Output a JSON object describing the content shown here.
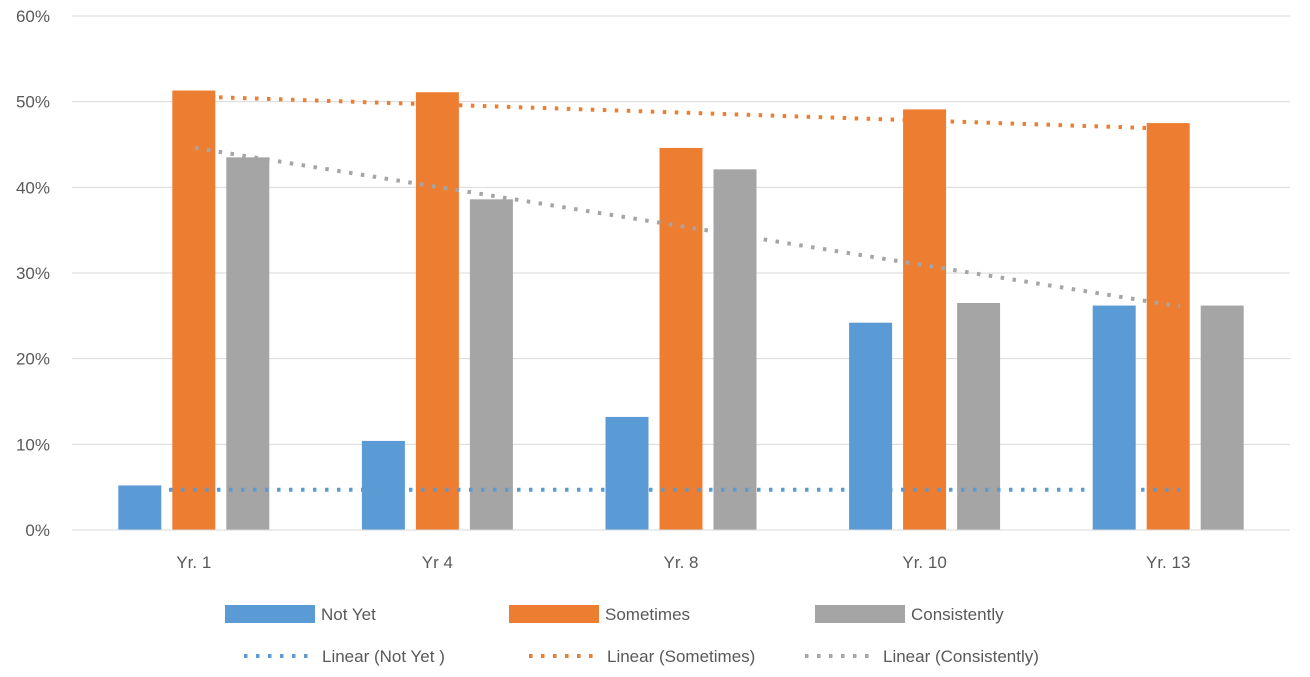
{
  "chart_data": {
    "type": "bar",
    "title": "",
    "xlabel": "",
    "ylabel": "",
    "categories": [
      "Yr. 1",
      "Yr 4",
      "Yr. 8",
      "Yr. 10",
      "Yr. 13"
    ],
    "ylim": [
      0,
      0.6
    ],
    "yticks": [
      0,
      0.1,
      0.2,
      0.3,
      0.4,
      0.5,
      0.6
    ],
    "ytick_labels": [
      "0%",
      "10%",
      "20%",
      "30%",
      "40%",
      "50%",
      "60%"
    ],
    "grid": true,
    "legend_position": "bottom",
    "series": [
      {
        "name": "Not Yet",
        "color": "#5b9bd5",
        "values": [
          0.052,
          0.104,
          0.132,
          0.242,
          0.262
        ]
      },
      {
        "name": "Sometimes",
        "color": "#ed7d31",
        "values": [
          0.513,
          0.511,
          0.446,
          0.491,
          0.475
        ]
      },
      {
        "name": "Consistently",
        "color": "#a5a5a5",
        "values": [
          0.435,
          0.386,
          0.421,
          0.265,
          0.262
        ]
      }
    ],
    "trendlines": [
      {
        "name": "Linear (Not Yet )",
        "color": "#5b9bd5",
        "type": "linear",
        "series_index": 0,
        "start": 0.047,
        "end": 0.047
      },
      {
        "name": "Linear (Sometimes)",
        "color": "#ed7d31",
        "type": "linear",
        "series_index": 1,
        "start": 0.506,
        "end": 0.468
      },
      {
        "name": "Linear (Consistently)",
        "color": "#a5a5a5",
        "type": "linear",
        "series_index": 2,
        "start": 0.446,
        "end": 0.261
      }
    ]
  }
}
